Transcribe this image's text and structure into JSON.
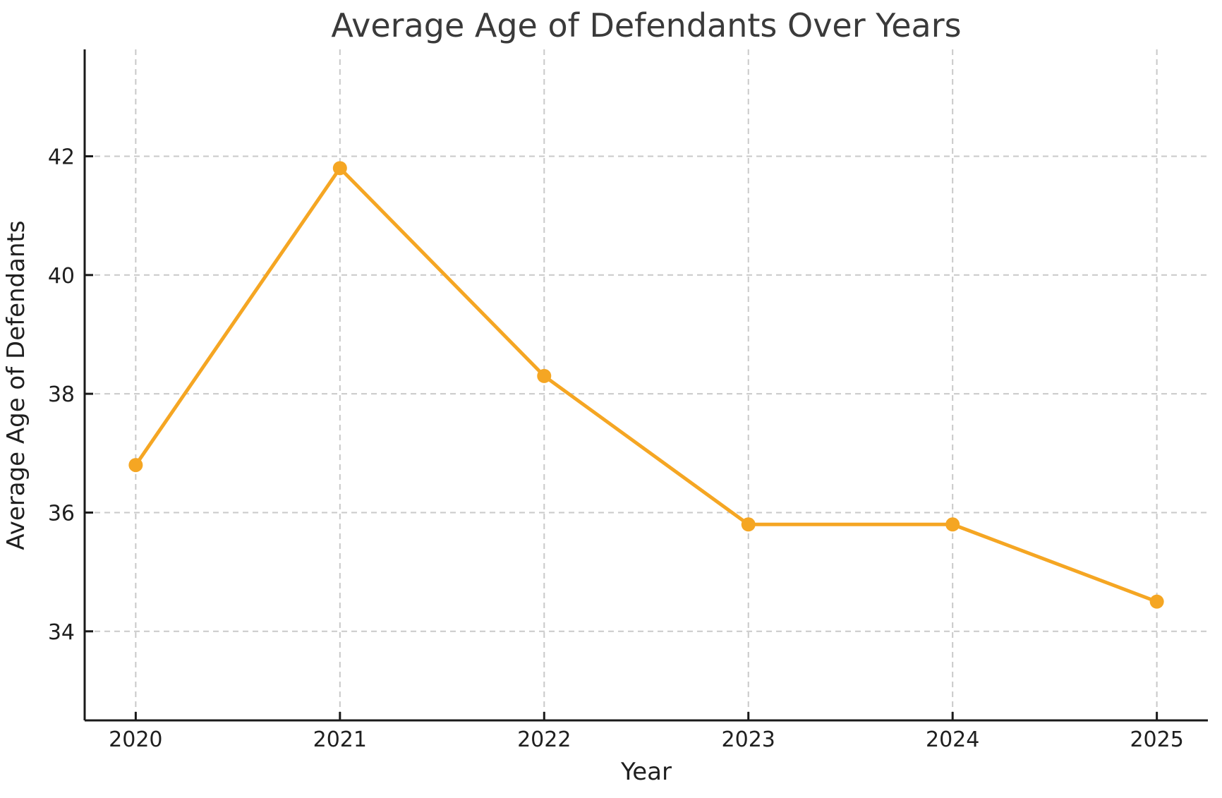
{
  "figure": {
    "background": "#ffffff"
  },
  "chart_data": {
    "type": "line",
    "title": "Average Age of Defendants Over Years",
    "xlabel": "Year",
    "ylabel": "Average Age of Defendants",
    "x": [
      2020,
      2021,
      2022,
      2023,
      2024,
      2025
    ],
    "series": [
      {
        "name": "Average Age of Defendants",
        "values": [
          36.8,
          41.8,
          38.3,
          35.8,
          35.8,
          34.5
        ]
      }
    ],
    "xticks": [
      2020,
      2021,
      2022,
      2023,
      2024,
      2025
    ],
    "yticks": [
      34,
      36,
      38,
      40,
      42
    ],
    "xlim": [
      2019.75,
      2025.25
    ],
    "ylim": [
      32.5,
      43.8
    ],
    "grid": true,
    "grid_style": "dashed",
    "legend": false,
    "line_color": "#F5A623",
    "marker_color": "#F5A623",
    "grid_color": "#c9c9c9",
    "axis_color": "#1a1a1a",
    "title_color": "#3a3a3a",
    "tick_label_color": "#1f1f1f",
    "axis_label_color": "#1f1f1f"
  }
}
